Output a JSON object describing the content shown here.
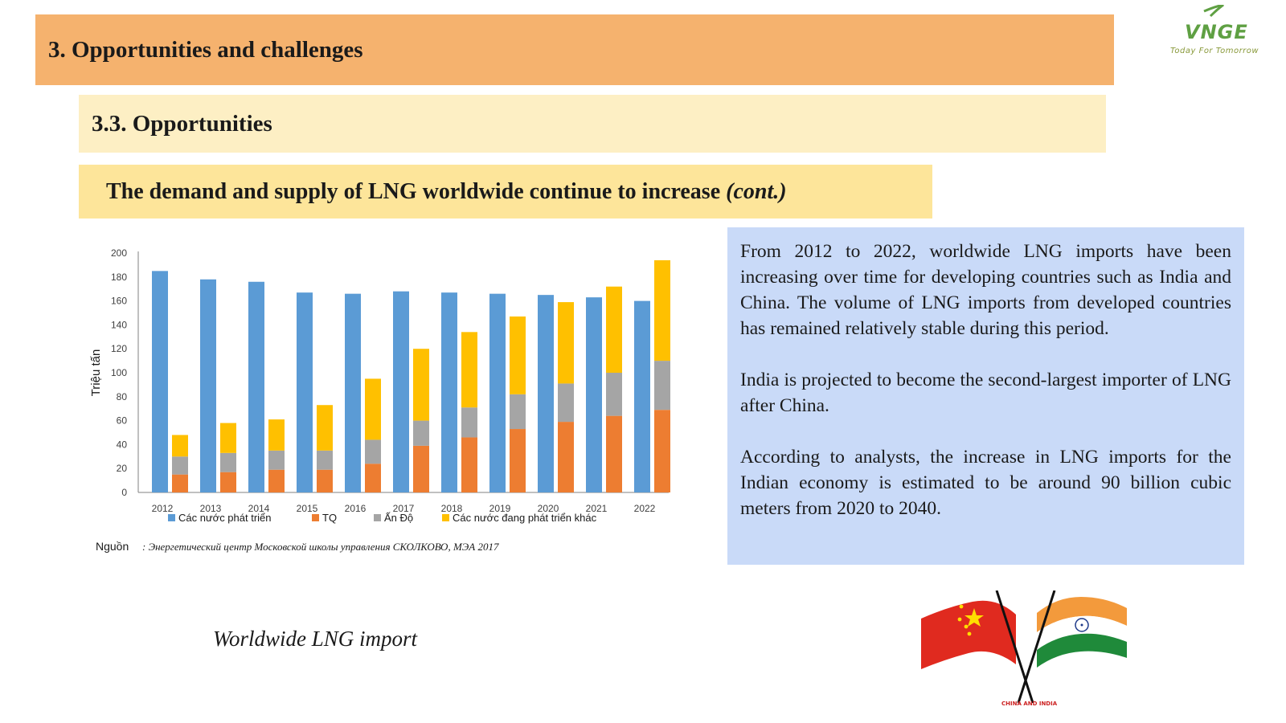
{
  "headings": {
    "h1": "3. Opportunities and challenges",
    "h2": "3.3. Opportunities",
    "h3_main": "The demand and supply of LNG worldwide continue to increase ",
    "h3_suffix": "(cont.)"
  },
  "logo": {
    "text": "VNGE",
    "tagline": "Today For Tomorrow"
  },
  "info": {
    "p1": "From 2012 to 2022, worldwide LNG imports have been increasing over time for developing countries such as India and China. The volume of LNG imports from developed countries has remained relatively stable during this period.",
    "p2": "India is projected to become the second-largest importer of LNG after China.",
    "p3": "According to analysts, the increase in LNG imports for the Indian economy is estimated to be around 90 billion cubic meters from 2020 to 2040."
  },
  "caption": "Worldwide LNG import",
  "flags": {
    "label": "CHINA AND INDIA"
  },
  "chart_data": {
    "type": "bar",
    "ylabel": "Triệu tấn",
    "ylim": [
      0,
      200
    ],
    "yticks": [
      0,
      20,
      40,
      60,
      80,
      100,
      120,
      140,
      160,
      180,
      200
    ],
    "categories": [
      "2012",
      "2013",
      "2014",
      "2015",
      "2016",
      "2017",
      "2018",
      "2019",
      "2020",
      "2021",
      "2022"
    ],
    "series": [
      {
        "name": "Các nước phát triển",
        "color": "#5b9bd5",
        "stack": "a",
        "values": [
          185,
          178,
          176,
          167,
          166,
          168,
          167,
          166,
          165,
          163,
          160
        ]
      },
      {
        "name": "TQ",
        "color": "#ed7d31",
        "stack": "b",
        "values": [
          15,
          17,
          19,
          19,
          24,
          39,
          46,
          53,
          59,
          64,
          69
        ]
      },
      {
        "name": "Ấn Độ",
        "color": "#a5a5a5",
        "stack": "b",
        "values": [
          15,
          16,
          16,
          16,
          20,
          21,
          25,
          29,
          32,
          36,
          41
        ]
      },
      {
        "name": "Các nước đang phát triển khác",
        "color": "#ffc000",
        "stack": "b",
        "values": [
          18,
          25,
          26,
          38,
          51,
          60,
          63,
          65,
          68,
          72,
          84
        ]
      }
    ],
    "legend_position": "bottom",
    "grid": false,
    "source_label": "Nguồn",
    "source_text": ": Энергетический центр Московской школы управления СКОЛКОВО, МЭА 2017"
  }
}
